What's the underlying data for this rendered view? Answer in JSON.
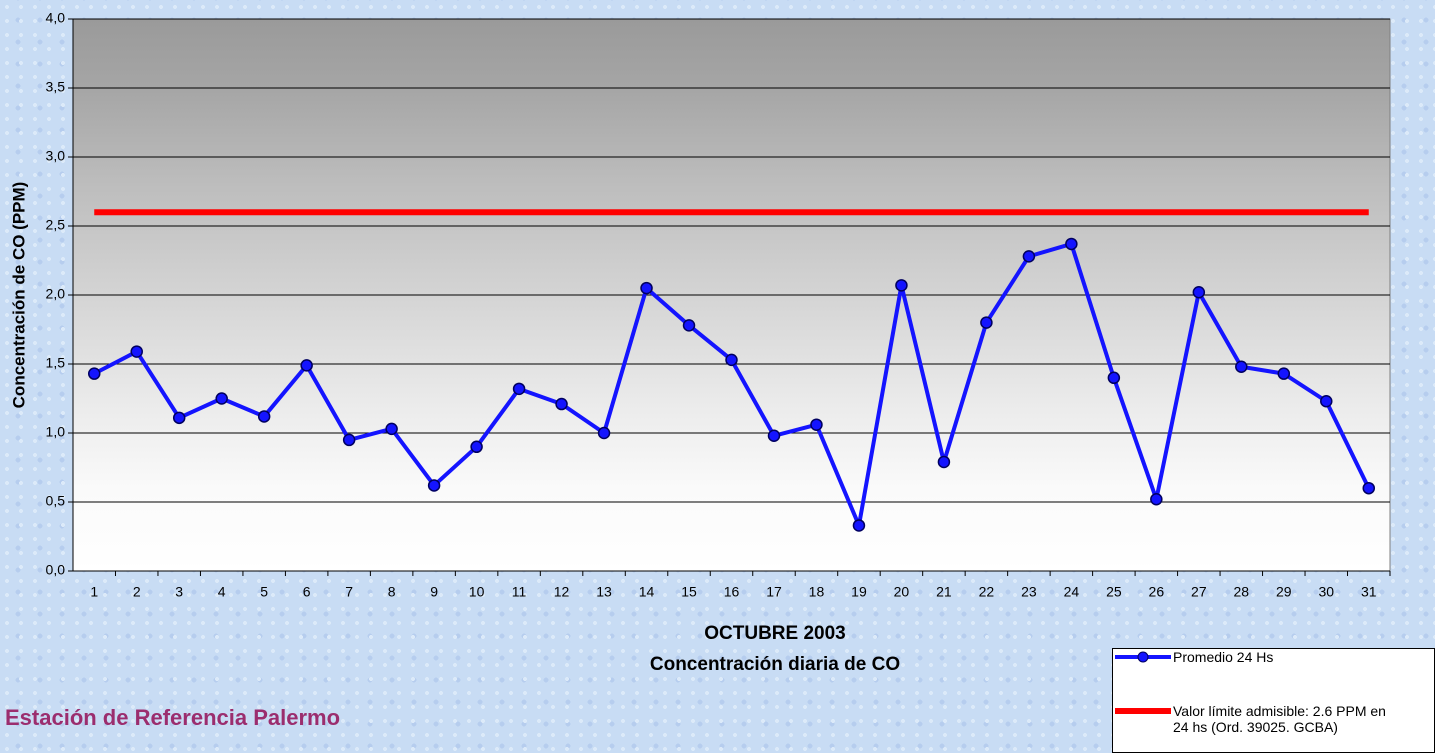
{
  "chart_data": {
    "type": "line",
    "xlabel": "OCTUBRE  2003",
    "subtitle": "Concentración diaria de CO",
    "ylabel": "Concentración de CO (PPM)",
    "footer": "Estación de Referencia Palermo",
    "categories": [
      "1",
      "2",
      "3",
      "4",
      "5",
      "6",
      "7",
      "8",
      "9",
      "10",
      "11",
      "12",
      "13",
      "14",
      "15",
      "16",
      "17",
      "18",
      "19",
      "20",
      "21",
      "22",
      "23",
      "24",
      "25",
      "26",
      "27",
      "28",
      "29",
      "30",
      "31"
    ],
    "series": [
      {
        "name": "Promedio 24 Hs",
        "color": "#1414ff",
        "marker": true,
        "values": [
          1.43,
          1.59,
          1.11,
          1.25,
          1.12,
          1.49,
          0.95,
          1.03,
          0.62,
          0.9,
          1.32,
          1.21,
          1.0,
          2.05,
          1.78,
          1.53,
          0.98,
          1.06,
          0.33,
          2.07,
          0.79,
          1.8,
          2.28,
          2.37,
          1.4,
          0.52,
          2.02,
          1.48,
          1.43,
          1.23,
          0.6
        ]
      },
      {
        "name": "Valor límite admisible: 2.6 PPM en 24 hs (Ord. 39025. GCBA)",
        "color": "#ff0000",
        "marker": false,
        "values": [
          2.6,
          2.6,
          2.6,
          2.6,
          2.6,
          2.6,
          2.6,
          2.6,
          2.6,
          2.6,
          2.6,
          2.6,
          2.6,
          2.6,
          2.6,
          2.6,
          2.6,
          2.6,
          2.6,
          2.6,
          2.6,
          2.6,
          2.6,
          2.6,
          2.6,
          2.6,
          2.6,
          2.6,
          2.6,
          2.6,
          2.6
        ]
      }
    ],
    "ylim": [
      0,
      4
    ],
    "yticks": [
      {
        "value": 0,
        "label": "0,0"
      },
      {
        "value": 0.5,
        "label": "0,5"
      },
      {
        "value": 1,
        "label": "1,0"
      },
      {
        "value": 1.5,
        "label": "1,5"
      },
      {
        "value": 2,
        "label": "2,0"
      },
      {
        "value": 2.5,
        "label": "2,5"
      },
      {
        "value": 3,
        "label": "3,0"
      },
      {
        "value": 3.5,
        "label": "3,5"
      },
      {
        "value": 4,
        "label": "4,0"
      }
    ],
    "grid": true
  }
}
